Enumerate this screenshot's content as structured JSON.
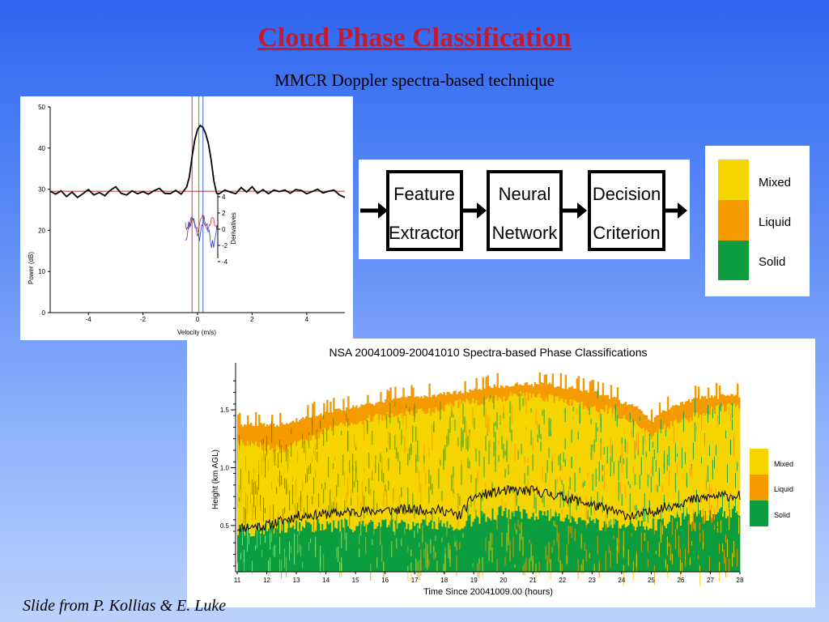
{
  "slide": {
    "title": "Cloud Phase Classification",
    "subtitle": "MMCR Doppler spectra-based technique",
    "footer": "Slide from P. Kollias & E. Luke"
  },
  "flow_diagram": {
    "boxes": [
      {
        "line1": "Feature",
        "line2": "Extractor"
      },
      {
        "line1": "Neural",
        "line2": "Network"
      },
      {
        "line1": "Decision",
        "line2": "Criterion"
      }
    ]
  },
  "legend": {
    "items": [
      {
        "label": "Mixed",
        "color": "#f5d400"
      },
      {
        "label": "Liquid",
        "color": "#f59b00"
      },
      {
        "label": "Solid",
        "color": "#0c9e3e"
      }
    ]
  },
  "colors": {
    "mixed": "#f5d400",
    "liquid": "#f59b00",
    "solid": "#0c9e3e",
    "title_red": "#c41a2c",
    "background_top": "#2f66f0",
    "background_bottom": "#bcd2fd"
  },
  "chart_data": [
    {
      "type": "line",
      "xlabel": "Velocity (m/s)",
      "ylabel": "Power (dB)",
      "y2label": "Derivatives",
      "xlim": [
        -5.4,
        5.4
      ],
      "ylim": [
        0,
        50
      ],
      "xticks": [
        "-4",
        "-2",
        "0",
        "2",
        "4"
      ],
      "yticks": [
        "0",
        "10",
        "20",
        "30",
        "40",
        "50"
      ],
      "y2ticks": [
        "4",
        "2",
        "0",
        "-2",
        "-4"
      ],
      "x_tick_values": [
        -4,
        -2,
        0,
        2,
        4
      ],
      "y_tick_values": [
        0,
        10,
        20,
        30,
        40,
        50
      ],
      "y2_tick_values": [
        4,
        2,
        0,
        -2,
        -4
      ],
      "noise_level": 29.5,
      "vertical_lines": [
        {
          "x": -0.2,
          "color": "#d04050"
        },
        {
          "x": 0.05,
          "color": "#30b040"
        },
        {
          "x": 0.2,
          "color": "#4060d0"
        }
      ],
      "series": [
        {
          "color": "#000000",
          "x": [
            -5.4,
            -5.2,
            -5.0,
            -4.8,
            -4.6,
            -4.4,
            -4.2,
            -4.0,
            -3.8,
            -3.6,
            -3.4,
            -3.2,
            -3.0,
            -2.8,
            -2.6,
            -2.4,
            -2.2,
            -2.0,
            -1.8,
            -1.6,
            -1.4,
            -1.2,
            -1.0,
            -0.8,
            -0.6,
            -0.4,
            -0.3,
            -0.2,
            -0.1,
            0.0,
            0.1,
            0.2,
            0.3,
            0.4,
            0.5,
            0.6,
            0.7,
            0.8,
            1.0,
            1.2,
            1.4,
            1.6,
            1.8,
            2.0,
            2.2,
            2.4,
            2.6,
            2.8,
            3.0,
            3.2,
            3.4,
            3.6,
            3.8,
            4.0,
            4.2,
            4.4,
            4.6,
            4.8,
            5.0,
            5.2,
            5.4
          ],
          "y": [
            29.5,
            28.8,
            29.6,
            28.2,
            29.3,
            28.0,
            28.9,
            29.9,
            28.6,
            29.2,
            28.4,
            29.7,
            30.6,
            29.0,
            28.6,
            29.6,
            28.9,
            29.4,
            28.8,
            29.6,
            30.2,
            29.0,
            28.9,
            29.7,
            28.8,
            30.5,
            33.0,
            38.0,
            42.0,
            44.5,
            45.5,
            45.0,
            43.5,
            41.0,
            37.0,
            32.0,
            29.0,
            28.9,
            29.8,
            29.3,
            28.9,
            30.4,
            29.3,
            30.6,
            29.0,
            29.9,
            28.9,
            29.8,
            29.4,
            29.8,
            29.0,
            29.9,
            29.7,
            28.9,
            29.4,
            30.0,
            29.1,
            29.5,
            29.8,
            28.6,
            28.0
          ]
        }
      ]
    },
    {
      "type": "heatmap",
      "title": "NSA 20041009-20041010 Spectra-based Phase Classifications",
      "xlabel": "Time Since 20041009.00 (hours)",
      "ylabel": "Height (km AGL)",
      "xlim": [
        11,
        28
      ],
      "ylim": [
        0.1,
        1.85
      ],
      "xticks": [
        "11",
        "12",
        "13",
        "14",
        "15",
        "16",
        "17",
        "18",
        "19",
        "20",
        "21",
        "22",
        "23",
        "24",
        "25",
        "26",
        "27",
        "28"
      ],
      "yticks": [
        "0.5",
        "1.0",
        "1.5"
      ],
      "x_tick_values": [
        11,
        12,
        13,
        14,
        15,
        16,
        17,
        18,
        19,
        20,
        21,
        22,
        23,
        24,
        25,
        26,
        27,
        28
      ],
      "y_tick_values": [
        0.5,
        1.0,
        1.5
      ],
      "categories": [
        "Mixed",
        "Liquid",
        "Solid"
      ],
      "cloud_top_km": {
        "time": [
          11,
          12.5,
          13.5,
          14.5,
          15.5,
          16.5,
          17.5,
          18.5,
          19.5,
          20.5,
          21.5,
          22.5,
          23.5,
          24.5,
          25.0,
          25.5,
          26.5,
          27.5,
          28
        ],
        "height": [
          1.37,
          1.37,
          1.45,
          1.5,
          1.55,
          1.6,
          1.62,
          1.65,
          1.7,
          1.72,
          1.72,
          1.68,
          1.62,
          1.52,
          1.4,
          1.5,
          1.6,
          1.62,
          1.62
        ]
      },
      "liquid_layer_base_km": {
        "time": [
          11,
          12.5,
          13.5,
          14.5,
          15.5,
          16.5,
          17.5,
          18.5,
          19.5,
          20.5,
          21.5,
          22.5,
          23.5,
          24.5,
          25.0,
          25.5,
          26.5,
          27.5,
          28
        ],
        "height": [
          1.22,
          1.15,
          1.25,
          1.38,
          1.42,
          1.46,
          1.48,
          1.55,
          1.58,
          1.62,
          1.6,
          1.55,
          1.5,
          1.38,
          1.25,
          1.35,
          1.45,
          1.52,
          1.52
        ]
      },
      "solid_top_km": {
        "time": [
          11,
          13,
          15,
          17,
          18.5,
          19,
          20,
          21,
          22,
          23,
          24,
          25,
          26,
          27,
          28
        ],
        "height": [
          0.45,
          0.5,
          0.5,
          0.5,
          0.5,
          0.55,
          0.62,
          0.6,
          0.58,
          0.52,
          0.5,
          0.5,
          0.55,
          0.6,
          0.62
        ]
      },
      "black_line_km": {
        "time": [
          11,
          12,
          13,
          14,
          15,
          16,
          17,
          18,
          18.5,
          19,
          20,
          21,
          22,
          23,
          24,
          24.5,
          25,
          26,
          27,
          28
        ],
        "height": [
          0.48,
          0.5,
          0.58,
          0.6,
          0.62,
          0.63,
          0.64,
          0.63,
          0.58,
          0.75,
          0.8,
          0.8,
          0.75,
          0.68,
          0.6,
          0.58,
          0.62,
          0.7,
          0.75,
          0.76
        ]
      }
    }
  ]
}
